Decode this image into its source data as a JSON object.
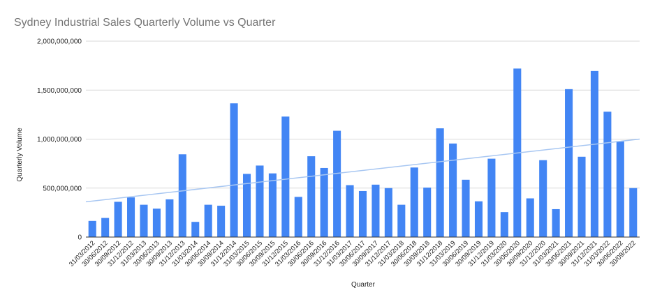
{
  "chart_data": {
    "type": "bar",
    "title": "Sydney Industrial Sales Quarterly Volume vs Quarter",
    "xlabel": "Quarter",
    "ylabel": "Quarterly Volume",
    "ylim": [
      0,
      2000000000
    ],
    "yticks": [
      0,
      500000000,
      1000000000,
      1500000000,
      2000000000
    ],
    "ytick_labels": [
      "0",
      "500,000,000",
      "1,000,000,000",
      "1,500,000,000",
      "2,000,000,000"
    ],
    "grid": true,
    "legend": "none",
    "bar_color": "#4285f4",
    "trendline_color": "#a8c7f2",
    "trendline": {
      "start": 360000000,
      "end": 1000000000
    },
    "categories": [
      "31/03/2012",
      "30/06/2012",
      "30/09/2012",
      "31/12/2012",
      "31/03/2013",
      "30/06/2013",
      "30/09/2013",
      "31/12/2013",
      "31/03/2014",
      "30/06/2014",
      "30/09/2014",
      "31/12/2014",
      "31/03/2015",
      "30/06/2015",
      "30/09/2015",
      "31/12/2015",
      "31/03/2016",
      "30/06/2016",
      "30/09/2016",
      "31/12/2016",
      "31/03/2017",
      "30/06/2017",
      "30/09/2017",
      "31/12/2017",
      "31/03/2018",
      "30/06/2018",
      "30/09/2018",
      "31/12/2018",
      "31/03/2019",
      "30/06/2019",
      "30/09/2019",
      "31/12/2019",
      "31/03/2020",
      "30/06/2020",
      "30/09/2020",
      "31/12/2020",
      "31/03/2021",
      "30/06/2021",
      "30/09/2021",
      "31/12/2021",
      "31/03/2022",
      "30/06/2022",
      "30/09/2022"
    ],
    "values": [
      165000000,
      195000000,
      360000000,
      405000000,
      330000000,
      290000000,
      385000000,
      845000000,
      155000000,
      330000000,
      320000000,
      1365000000,
      645000000,
      730000000,
      650000000,
      1230000000,
      410000000,
      825000000,
      705000000,
      1085000000,
      530000000,
      470000000,
      535000000,
      500000000,
      330000000,
      710000000,
      505000000,
      1110000000,
      955000000,
      585000000,
      365000000,
      800000000,
      255000000,
      1720000000,
      395000000,
      785000000,
      285000000,
      1510000000,
      820000000,
      1695000000,
      1280000000,
      980000000,
      500000000
    ]
  }
}
